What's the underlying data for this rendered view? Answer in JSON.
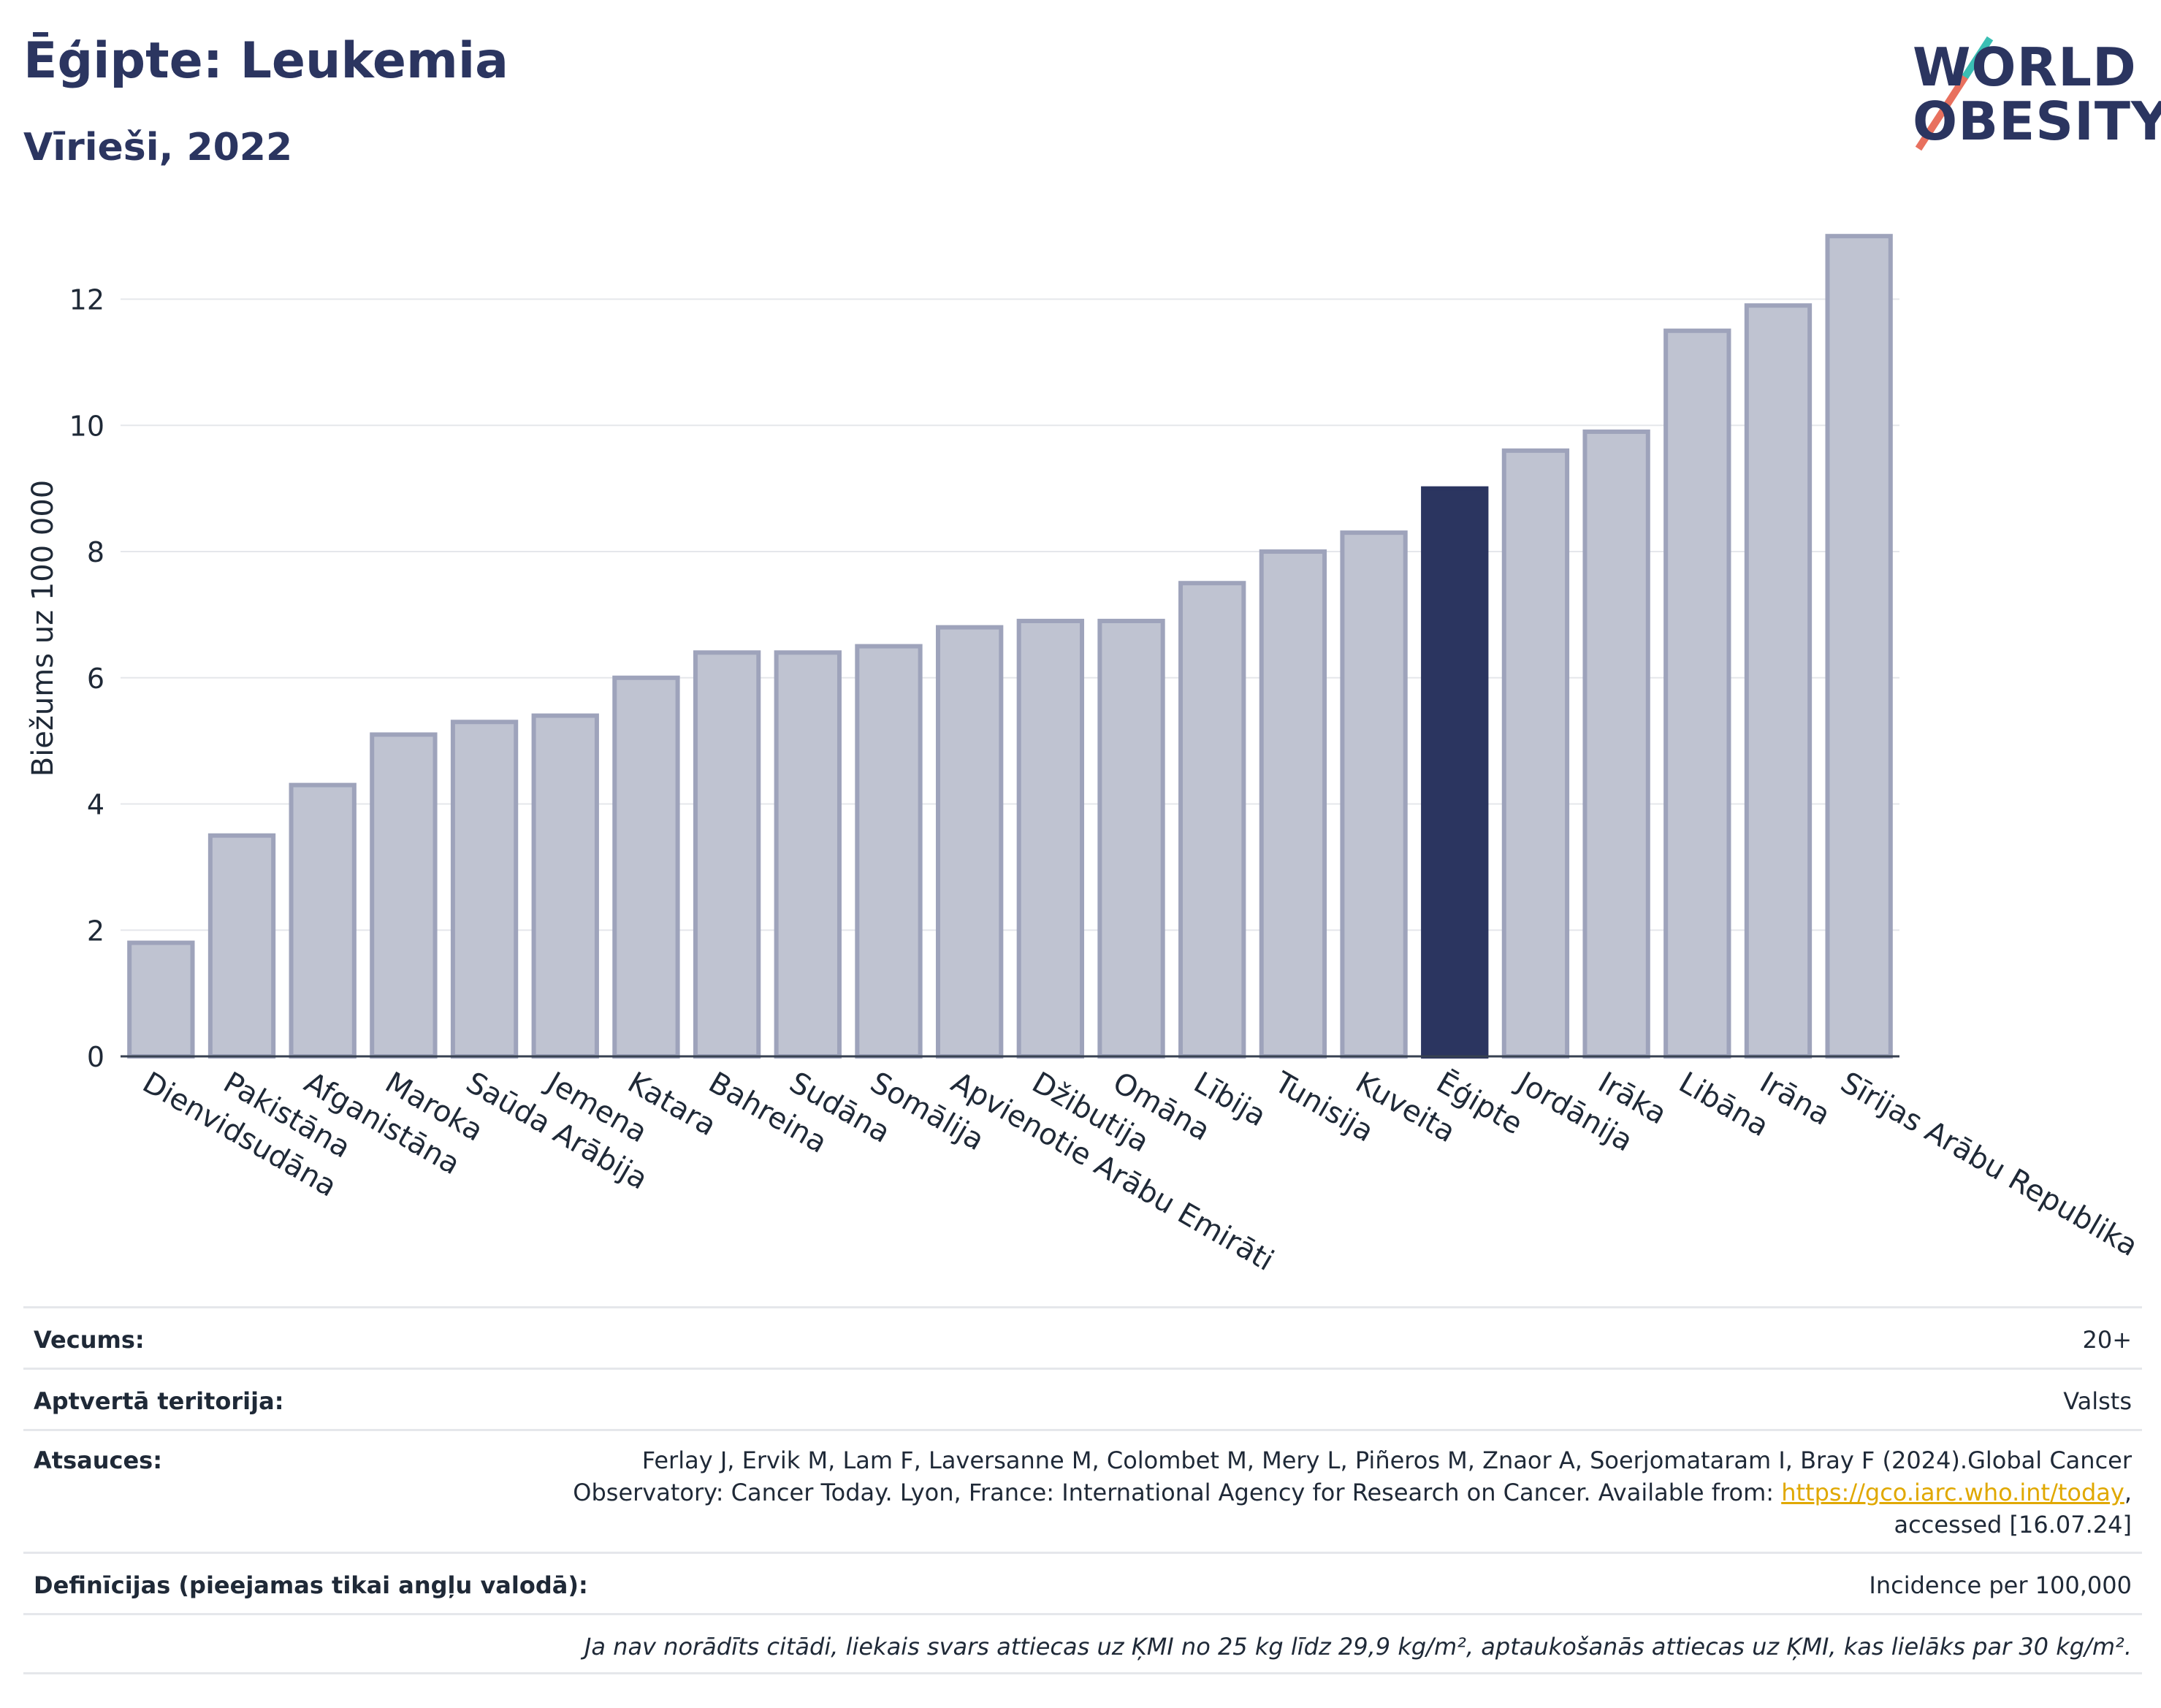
{
  "header": {
    "title": "Ēģipte: Leukemia",
    "subtitle": "Vīrieši, 2022"
  },
  "logo": {
    "line1": "WORLD",
    "line2": "OBESITY"
  },
  "colors": {
    "highlight": "#2b3560",
    "bar": "#bfc3d1",
    "bar_stroke": "#9ea3bb",
    "grid": "#e5e7eb"
  },
  "chart_data": {
    "type": "bar",
    "ylabel": "Biežums uz 100 000",
    "ylim": [
      0,
      13.5
    ],
    "yticks": [
      0,
      2,
      4,
      6,
      8,
      10,
      12
    ],
    "grid": true,
    "highlight": "Ēģipte",
    "categories": [
      "Dienvidsudāna",
      "Pakistāna",
      "Afganistāna",
      "Maroka",
      "Saūda Arābija",
      "Jemena",
      "Katara",
      "Bahreina",
      "Sudāna",
      "Somālija",
      "Apvienotie Arābu Emirāti",
      "Džibutija",
      "Omāna",
      "Lībija",
      "Tunisija",
      "Kuveita",
      "Ēģipte",
      "Jordānija",
      "Irāka",
      "Libāna",
      "Irāna",
      "Sīrijas Arābu Republika"
    ],
    "values": [
      1.8,
      3.5,
      4.3,
      5.1,
      5.3,
      5.4,
      6.0,
      6.4,
      6.4,
      6.5,
      6.8,
      6.9,
      6.9,
      7.5,
      8.0,
      8.3,
      9.0,
      9.6,
      9.9,
      11.5,
      11.9,
      13.0
    ]
  },
  "meta": {
    "age_label": "Vecums:",
    "age_value": "20+",
    "territory_label": "Aptvertā teritorija:",
    "territory_value": "Valsts",
    "refs_label": "Atsauces:",
    "refs_line1": "Ferlay J, Ervik M, Lam F, Laversanne M, Colombet M, Mery L, Piñeros M, Znaor A, Soerjomataram I, Bray F (2024).Global Cancer",
    "refs_line2_pre": "Observatory: Cancer Today. Lyon, France: International Agency for Research on Cancer. Available from: ",
    "refs_link": "https://gco.iarc.who.int/today",
    "refs_line2_post": ",",
    "refs_line3": "accessed [16.07.24]",
    "defs_label": "Definīcijas (pieejamas tikai angļu valodā):",
    "defs_value": "Incidence per 100,000",
    "note": "Ja nav norādīts citādi, liekais svars attiecas uz ĶMI no 25 kg līdz 29,9 kg/m², aptaukošanās attiecas uz ĶMI, kas lielāks par 30 kg/m²."
  }
}
